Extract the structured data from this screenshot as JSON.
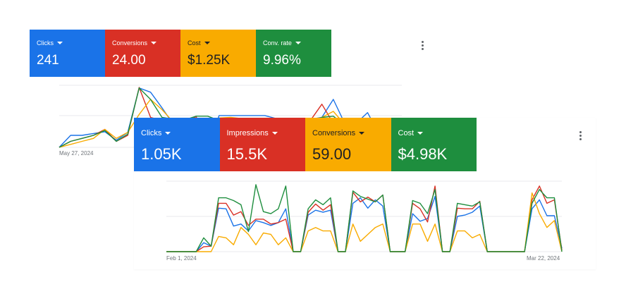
{
  "colors": {
    "blue": "#1a73e8",
    "red": "#d93025",
    "yellow": "#f9ab00",
    "green": "#1e8e3e",
    "grid": "#e8eaed"
  },
  "back_panel": {
    "tiles": [
      {
        "label": "Clicks",
        "value": "241",
        "color": "#1a73e8"
      },
      {
        "label": "Conversions",
        "value": "24.00",
        "color": "#d93025"
      },
      {
        "label": "Cost",
        "value": "$1.25K",
        "color": "#f9ab00"
      },
      {
        "label": "Conv. rate",
        "value": "9.96%",
        "color": "#1e8e3e"
      }
    ],
    "more_icon": "more-vert-icon",
    "date_start": "May 27, 2024"
  },
  "front_panel": {
    "tiles": [
      {
        "label": "Clicks",
        "value": "1.05K",
        "color": "#1a73e8"
      },
      {
        "label": "Impressions",
        "value": "15.5K",
        "color": "#d93025"
      },
      {
        "label": "Conversions",
        "value": "59.00",
        "color": "#f9ab00"
      },
      {
        "label": "Cost",
        "value": "$4.98K",
        "color": "#1e8e3e"
      }
    ],
    "more_icon": "more-vert-icon",
    "date_start": "Feb 1, 2024",
    "date_end": "Mar 22, 2024"
  },
  "chart_data": [
    {
      "type": "line",
      "panel": "back",
      "x_start": "May 27, 2024",
      "ylim": [
        0,
        1
      ],
      "grid": true,
      "series": [
        {
          "name": "Clicks",
          "color": "#1a73e8",
          "values": [
            0.0,
            0.2,
            0.2,
            0.23,
            0.26,
            0.12,
            0.25,
            0.99,
            0.92,
            0.66,
            0.38,
            0.37,
            0.26,
            0.0,
            0.53,
            0.53,
            0.53,
            0.53,
            0.53,
            0.48,
            0.46,
            0.0,
            0.47,
            0.5,
            0.8,
            0.4,
            0.4,
            0.58,
            0.22,
            0.23,
            0.0
          ]
        },
        {
          "name": "Conversions",
          "color": "#d93025",
          "values": [
            0.0,
            0.1,
            0.15,
            0.2,
            0.3,
            0.1,
            0.2,
            1.0,
            0.5,
            0.45,
            0.45,
            0.45,
            0.51,
            0.0,
            0.45,
            0.46,
            0.46,
            0.45,
            0.46,
            0.45,
            0.42,
            0.0,
            0.45,
            0.72,
            0.4,
            0.38,
            0.36,
            0.41,
            0.45,
            0.45,
            0.0
          ]
        },
        {
          "name": "Cost",
          "color": "#f9ab00",
          "values": [
            0.0,
            0.05,
            0.1,
            0.15,
            0.3,
            0.15,
            0.25,
            0.55,
            0.8,
            0.63,
            0.42,
            0.38,
            0.38,
            0.0,
            0.49,
            0.5,
            0.48,
            0.44,
            0.43,
            0.41,
            0.4,
            0.0,
            0.4,
            0.5,
            0.6,
            0.38,
            0.34,
            0.38,
            0.35,
            0.34,
            0.0
          ]
        },
        {
          "name": "Conv. rate",
          "color": "#1e8e3e",
          "values": [
            0.0,
            0.1,
            0.15,
            0.2,
            0.28,
            0.1,
            0.22,
            0.99,
            0.8,
            0.5,
            0.47,
            0.46,
            0.52,
            0.52,
            0.45,
            0.45,
            0.45,
            0.45,
            0.45,
            0.42,
            0.4,
            0.0,
            0.45,
            0.5,
            0.52,
            0.37,
            0.35,
            0.38,
            0.4,
            0.4,
            0.0
          ]
        }
      ]
    },
    {
      "type": "line",
      "panel": "front",
      "x_start": "Feb 1, 2024",
      "x_end": "Mar 22, 2024",
      "ylim": [
        0,
        1
      ],
      "grid": true,
      "series": [
        {
          "name": "Clicks",
          "color": "#1a73e8",
          "values": [
            0.0,
            0.0,
            0.0,
            0.0,
            0.0,
            0.13,
            0.08,
            0.63,
            0.62,
            0.37,
            0.4,
            0.3,
            0.45,
            0.42,
            0.38,
            0.42,
            0.62,
            0.0,
            0.0,
            0.53,
            0.6,
            0.57,
            0.6,
            0.0,
            0.0,
            0.7,
            0.78,
            0.63,
            0.75,
            0.66,
            0.0,
            0.0,
            0.0,
            0.55,
            0.44,
            0.48,
            0.8,
            0.0,
            0.0,
            0.51,
            0.53,
            0.57,
            0.66,
            0.0,
            0.0,
            0.0,
            0.0,
            0.0,
            0.0,
            0.62,
            0.75,
            0.52,
            0.52,
            0.05
          ]
        },
        {
          "name": "Impressions",
          "color": "#d93025",
          "values": [
            0.0,
            0.0,
            0.0,
            0.0,
            0.0,
            0.07,
            0.08,
            0.7,
            0.7,
            0.53,
            0.58,
            0.38,
            0.47,
            0.47,
            0.4,
            0.42,
            0.47,
            0.0,
            0.0,
            0.57,
            0.69,
            0.6,
            0.68,
            0.0,
            0.0,
            0.86,
            0.72,
            0.79,
            0.72,
            0.82,
            0.0,
            0.0,
            0.0,
            0.7,
            0.62,
            0.43,
            0.95,
            0.0,
            0.0,
            0.63,
            0.62,
            0.62,
            0.73,
            0.0,
            0.0,
            0.0,
            0.0,
            0.0,
            0.0,
            0.75,
            0.95,
            0.7,
            0.75,
            0.02
          ]
        },
        {
          "name": "Conversions",
          "color": "#f9ab00",
          "values": [
            0.0,
            0.0,
            0.0,
            0.0,
            0.0,
            0.0,
            0.0,
            0.22,
            0.2,
            0.1,
            0.35,
            0.25,
            0.1,
            0.27,
            0.25,
            0.1,
            0.2,
            0.0,
            0.0,
            0.3,
            0.35,
            0.3,
            0.3,
            0.0,
            0.0,
            0.4,
            0.15,
            0.25,
            0.35,
            0.4,
            0.0,
            0.0,
            0.0,
            0.4,
            0.4,
            0.15,
            0.4,
            0.0,
            0.0,
            0.3,
            0.3,
            0.2,
            0.25,
            0.0,
            0.0,
            0.0,
            0.0,
            0.0,
            0.0,
            0.85,
            0.55,
            0.35,
            0.45,
            0.0
          ]
        },
        {
          "name": "Cost",
          "color": "#1e8e3e",
          "values": [
            0.0,
            0.0,
            0.0,
            0.0,
            0.0,
            0.2,
            0.08,
            0.78,
            0.78,
            0.74,
            0.68,
            0.29,
            0.97,
            0.58,
            0.55,
            0.62,
            0.95,
            0.0,
            0.0,
            0.62,
            0.75,
            0.68,
            0.78,
            0.0,
            0.0,
            0.88,
            0.8,
            0.76,
            0.72,
            0.82,
            0.0,
            0.0,
            0.0,
            0.74,
            0.7,
            0.55,
            0.9,
            0.0,
            0.0,
            0.7,
            0.68,
            0.66,
            0.72,
            0.0,
            0.0,
            0.0,
            0.0,
            0.0,
            0.0,
            0.7,
            0.9,
            0.78,
            0.78,
            0.0
          ]
        }
      ]
    }
  ]
}
